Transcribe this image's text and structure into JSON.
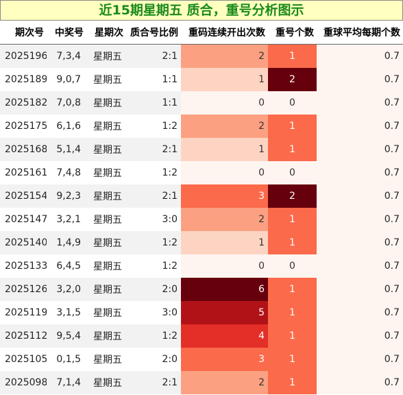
{
  "title": "近15期星期五 质合，重号分析图示",
  "headers": [
    "期次号",
    "中奖号",
    "星期次",
    "质合号比例",
    "重码连续开出次数",
    "重号个数",
    "重球平均每期个数"
  ],
  "colors": {
    "title_bg": "#ffffc0",
    "title_text": "#1a8a1a",
    "consec_scale": {
      "0": "#fff5f0",
      "1": "#fdd4c2",
      "2": "#fca082",
      "3": "#fb6a4a",
      "4": "#e32f27",
      "5": "#b11218",
      "6": "#67000d"
    },
    "repeat_scale": {
      "0": "#fff5f0",
      "1": "#fb6a4a",
      "2": "#67000d"
    },
    "avg_bg": "#fff5f0"
  },
  "rows": [
    {
      "issue": "2025196",
      "numbers": "7,3,4",
      "weekday": "星期五",
      "ratio": "2:1",
      "consec": "2",
      "repeat": "1",
      "avg": "0.7"
    },
    {
      "issue": "2025189",
      "numbers": "9,0,7",
      "weekday": "星期五",
      "ratio": "1:1",
      "consec": "1",
      "repeat": "2",
      "avg": "0.7"
    },
    {
      "issue": "2025182",
      "numbers": "7,0,8",
      "weekday": "星期五",
      "ratio": "1:1",
      "consec": "0",
      "repeat": "0",
      "avg": "0.7"
    },
    {
      "issue": "2025175",
      "numbers": "6,1,6",
      "weekday": "星期五",
      "ratio": "1:2",
      "consec": "2",
      "repeat": "1",
      "avg": "0.7"
    },
    {
      "issue": "2025168",
      "numbers": "5,1,4",
      "weekday": "星期五",
      "ratio": "2:1",
      "consec": "1",
      "repeat": "1",
      "avg": "0.7"
    },
    {
      "issue": "2025161",
      "numbers": "7,4,8",
      "weekday": "星期五",
      "ratio": "1:2",
      "consec": "0",
      "repeat": "0",
      "avg": "0.7"
    },
    {
      "issue": "2025154",
      "numbers": "9,2,3",
      "weekday": "星期五",
      "ratio": "2:1",
      "consec": "3",
      "repeat": "2",
      "avg": "0.7"
    },
    {
      "issue": "2025147",
      "numbers": "3,2,1",
      "weekday": "星期五",
      "ratio": "3:0",
      "consec": "2",
      "repeat": "1",
      "avg": "0.7"
    },
    {
      "issue": "2025140",
      "numbers": "1,4,9",
      "weekday": "星期五",
      "ratio": "1:2",
      "consec": "1",
      "repeat": "1",
      "avg": "0.7"
    },
    {
      "issue": "2025133",
      "numbers": "6,4,5",
      "weekday": "星期五",
      "ratio": "1:2",
      "consec": "0",
      "repeat": "0",
      "avg": "0.7"
    },
    {
      "issue": "2025126",
      "numbers": "3,2,0",
      "weekday": "星期五",
      "ratio": "2:0",
      "consec": "6",
      "repeat": "1",
      "avg": "0.7"
    },
    {
      "issue": "2025119",
      "numbers": "3,1,5",
      "weekday": "星期五",
      "ratio": "3:0",
      "consec": "5",
      "repeat": "1",
      "avg": "0.7"
    },
    {
      "issue": "2025112",
      "numbers": "9,5,4",
      "weekday": "星期五",
      "ratio": "1:2",
      "consec": "4",
      "repeat": "1",
      "avg": "0.7"
    },
    {
      "issue": "2025105",
      "numbers": "0,1,5",
      "weekday": "星期五",
      "ratio": "2:0",
      "consec": "3",
      "repeat": "1",
      "avg": "0.7"
    },
    {
      "issue": "2025098",
      "numbers": "7,1,4",
      "weekday": "星期五",
      "ratio": "2:1",
      "consec": "2",
      "repeat": "1",
      "avg": "0.7"
    }
  ]
}
